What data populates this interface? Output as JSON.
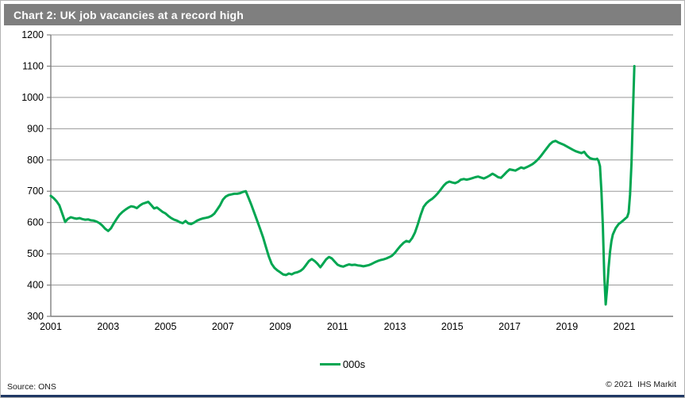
{
  "window": {
    "title": "Chart 2: UK job vacancies at a record high"
  },
  "legend": {
    "label": "000s"
  },
  "footer": {
    "source": "Source: ONS",
    "copyright": "© 2021  IHS Markit"
  },
  "colors": {
    "line_green": "#00A651",
    "title_bar_gray": "#7f7f7f",
    "gridline_gray": "#999999",
    "axis_gray": "#7f7f7f",
    "bottom_bar_navy": "#1f3864",
    "label_black": "#000000"
  },
  "chart_data": {
    "type": "line",
    "title": "Chart 2: UK job vacancies at a record high",
    "xlabel": "",
    "ylabel": "",
    "unit": "000s (thousands of job vacancies)",
    "grid": "horizontal",
    "legend_position": "bottom-center",
    "x_range": [
      2001,
      2022.7
    ],
    "y_range": [
      300,
      1200
    ],
    "x_ticks": [
      2001,
      2003,
      2005,
      2007,
      2009,
      2011,
      2013,
      2015,
      2017,
      2019,
      2021
    ],
    "y_ticks": [
      300,
      400,
      500,
      600,
      700,
      800,
      900,
      1000,
      1100,
      1200
    ],
    "series": [
      {
        "name": "000s",
        "color": "#00A651",
        "points": [
          [
            2001.0,
            685
          ],
          [
            2001.1,
            678
          ],
          [
            2001.2,
            668
          ],
          [
            2001.3,
            655
          ],
          [
            2001.4,
            628
          ],
          [
            2001.5,
            602
          ],
          [
            2001.6,
            612
          ],
          [
            2001.7,
            617
          ],
          [
            2001.8,
            614
          ],
          [
            2001.9,
            612
          ],
          [
            2002.0,
            614
          ],
          [
            2002.1,
            611
          ],
          [
            2002.2,
            609
          ],
          [
            2002.3,
            610
          ],
          [
            2002.4,
            607
          ],
          [
            2002.5,
            606
          ],
          [
            2002.6,
            603
          ],
          [
            2002.7,
            598
          ],
          [
            2002.8,
            590
          ],
          [
            2002.9,
            580
          ],
          [
            2003.0,
            573
          ],
          [
            2003.1,
            582
          ],
          [
            2003.2,
            598
          ],
          [
            2003.3,
            612
          ],
          [
            2003.4,
            625
          ],
          [
            2003.5,
            634
          ],
          [
            2003.6,
            641
          ],
          [
            2003.7,
            647
          ],
          [
            2003.8,
            652
          ],
          [
            2003.9,
            650
          ],
          [
            2004.0,
            646
          ],
          [
            2004.1,
            654
          ],
          [
            2004.2,
            660
          ],
          [
            2004.3,
            663
          ],
          [
            2004.4,
            666
          ],
          [
            2004.5,
            656
          ],
          [
            2004.6,
            645
          ],
          [
            2004.7,
            648
          ],
          [
            2004.8,
            641
          ],
          [
            2004.9,
            634
          ],
          [
            2005.0,
            629
          ],
          [
            2005.1,
            621
          ],
          [
            2005.2,
            614
          ],
          [
            2005.3,
            609
          ],
          [
            2005.4,
            606
          ],
          [
            2005.5,
            601
          ],
          [
            2005.6,
            598
          ],
          [
            2005.7,
            605
          ],
          [
            2005.8,
            597
          ],
          [
            2005.9,
            595
          ],
          [
            2006.0,
            600
          ],
          [
            2006.1,
            606
          ],
          [
            2006.2,
            610
          ],
          [
            2006.3,
            613
          ],
          [
            2006.4,
            615
          ],
          [
            2006.5,
            617
          ],
          [
            2006.6,
            621
          ],
          [
            2006.7,
            628
          ],
          [
            2006.8,
            641
          ],
          [
            2006.9,
            655
          ],
          [
            2007.0,
            673
          ],
          [
            2007.1,
            683
          ],
          [
            2007.2,
            688
          ],
          [
            2007.3,
            690
          ],
          [
            2007.4,
            692
          ],
          [
            2007.5,
            692
          ],
          [
            2007.6,
            694
          ],
          [
            2007.7,
            698
          ],
          [
            2007.8,
            700
          ],
          [
            2007.9,
            678
          ],
          [
            2008.0,
            655
          ],
          [
            2008.1,
            630
          ],
          [
            2008.2,
            605
          ],
          [
            2008.3,
            580
          ],
          [
            2008.4,
            553
          ],
          [
            2008.5,
            522
          ],
          [
            2008.6,
            492
          ],
          [
            2008.7,
            468
          ],
          [
            2008.8,
            455
          ],
          [
            2008.9,
            447
          ],
          [
            2009.0,
            441
          ],
          [
            2009.1,
            434
          ],
          [
            2009.2,
            432
          ],
          [
            2009.3,
            437
          ],
          [
            2009.4,
            434
          ],
          [
            2009.5,
            439
          ],
          [
            2009.6,
            441
          ],
          [
            2009.7,
            445
          ],
          [
            2009.8,
            452
          ],
          [
            2009.9,
            464
          ],
          [
            2010.0,
            477
          ],
          [
            2010.1,
            483
          ],
          [
            2010.2,
            477
          ],
          [
            2010.3,
            468
          ],
          [
            2010.4,
            457
          ],
          [
            2010.5,
            469
          ],
          [
            2010.6,
            482
          ],
          [
            2010.7,
            490
          ],
          [
            2010.8,
            485
          ],
          [
            2010.9,
            475
          ],
          [
            2011.0,
            465
          ],
          [
            2011.1,
            461
          ],
          [
            2011.2,
            459
          ],
          [
            2011.3,
            463
          ],
          [
            2011.4,
            466
          ],
          [
            2011.5,
            464
          ],
          [
            2011.6,
            465
          ],
          [
            2011.7,
            463
          ],
          [
            2011.8,
            462
          ],
          [
            2011.9,
            460
          ],
          [
            2012.0,
            462
          ],
          [
            2012.1,
            464
          ],
          [
            2012.2,
            468
          ],
          [
            2012.3,
            473
          ],
          [
            2012.4,
            477
          ],
          [
            2012.5,
            480
          ],
          [
            2012.6,
            482
          ],
          [
            2012.7,
            485
          ],
          [
            2012.8,
            489
          ],
          [
            2012.9,
            494
          ],
          [
            2013.0,
            503
          ],
          [
            2013.1,
            515
          ],
          [
            2013.2,
            526
          ],
          [
            2013.3,
            535
          ],
          [
            2013.4,
            541
          ],
          [
            2013.5,
            538
          ],
          [
            2013.6,
            550
          ],
          [
            2013.7,
            568
          ],
          [
            2013.8,
            595
          ],
          [
            2013.9,
            625
          ],
          [
            2014.0,
            650
          ],
          [
            2014.1,
            662
          ],
          [
            2014.2,
            670
          ],
          [
            2014.3,
            676
          ],
          [
            2014.4,
            684
          ],
          [
            2014.5,
            694
          ],
          [
            2014.6,
            706
          ],
          [
            2014.7,
            718
          ],
          [
            2014.8,
            727
          ],
          [
            2014.9,
            731
          ],
          [
            2015.0,
            728
          ],
          [
            2015.1,
            726
          ],
          [
            2015.2,
            730
          ],
          [
            2015.3,
            737
          ],
          [
            2015.4,
            739
          ],
          [
            2015.5,
            737
          ],
          [
            2015.6,
            739
          ],
          [
            2015.7,
            742
          ],
          [
            2015.8,
            745
          ],
          [
            2015.9,
            747
          ],
          [
            2016.0,
            744
          ],
          [
            2016.1,
            741
          ],
          [
            2016.2,
            745
          ],
          [
            2016.3,
            750
          ],
          [
            2016.4,
            756
          ],
          [
            2016.5,
            751
          ],
          [
            2016.6,
            745
          ],
          [
            2016.7,
            743
          ],
          [
            2016.8,
            752
          ],
          [
            2016.9,
            762
          ],
          [
            2017.0,
            770
          ],
          [
            2017.1,
            768
          ],
          [
            2017.2,
            766
          ],
          [
            2017.3,
            771
          ],
          [
            2017.4,
            776
          ],
          [
            2017.5,
            773
          ],
          [
            2017.6,
            777
          ],
          [
            2017.7,
            782
          ],
          [
            2017.8,
            787
          ],
          [
            2017.9,
            794
          ],
          [
            2018.0,
            803
          ],
          [
            2018.1,
            814
          ],
          [
            2018.2,
            826
          ],
          [
            2018.3,
            838
          ],
          [
            2018.4,
            850
          ],
          [
            2018.5,
            858
          ],
          [
            2018.6,
            861
          ],
          [
            2018.7,
            856
          ],
          [
            2018.8,
            852
          ],
          [
            2018.9,
            848
          ],
          [
            2019.0,
            843
          ],
          [
            2019.1,
            838
          ],
          [
            2019.2,
            833
          ],
          [
            2019.3,
            828
          ],
          [
            2019.4,
            825
          ],
          [
            2019.5,
            822
          ],
          [
            2019.6,
            826
          ],
          [
            2019.7,
            814
          ],
          [
            2019.8,
            806
          ],
          [
            2019.9,
            803
          ],
          [
            2020.0,
            802
          ],
          [
            2020.05,
            804
          ],
          [
            2020.1,
            797
          ],
          [
            2020.15,
            780
          ],
          [
            2020.2,
            700
          ],
          [
            2020.25,
            590
          ],
          [
            2020.3,
            430
          ],
          [
            2020.35,
            338
          ],
          [
            2020.4,
            390
          ],
          [
            2020.45,
            455
          ],
          [
            2020.5,
            505
          ],
          [
            2020.55,
            540
          ],
          [
            2020.6,
            562
          ],
          [
            2020.7,
            582
          ],
          [
            2020.8,
            595
          ],
          [
            2020.9,
            602
          ],
          [
            2021.0,
            610
          ],
          [
            2021.05,
            614
          ],
          [
            2021.1,
            618
          ],
          [
            2021.15,
            632
          ],
          [
            2021.2,
            690
          ],
          [
            2021.25,
            790
          ],
          [
            2021.3,
            950
          ],
          [
            2021.35,
            1100
          ]
        ]
      }
    ]
  }
}
